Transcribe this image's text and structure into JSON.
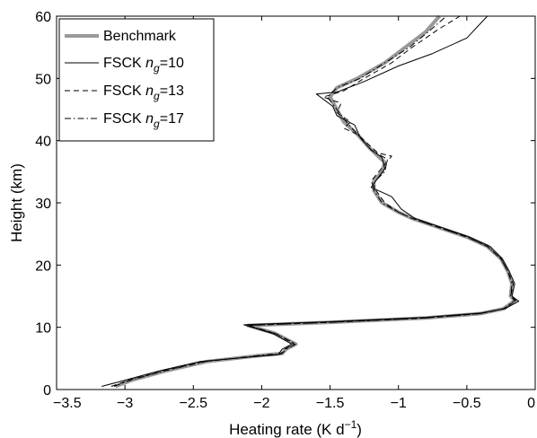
{
  "chart_data": {
    "type": "line",
    "title": "",
    "xlabel": "Heating rate (K d",
    "xlabel_superscript": "−1",
    "xlabel_suffix": ")",
    "ylabel": "Height (km)",
    "xlim": [
      -3.5,
      0
    ],
    "ylim": [
      0,
      60
    ],
    "xticks": [
      -3.5,
      -3,
      -2.5,
      -2,
      -1.5,
      -1,
      -0.5,
      0
    ],
    "xtick_labels": [
      "−3.5",
      "−3",
      "−2.5",
      "−2",
      "−1.5",
      "−1",
      "−0.5",
      "0"
    ],
    "yticks": [
      0,
      10,
      20,
      30,
      40,
      50,
      60
    ],
    "ytick_labels": [
      "0",
      "10",
      "20",
      "30",
      "40",
      "50",
      "60"
    ],
    "grid": false,
    "legend_position": "top-left",
    "series": [
      {
        "name": "Benchmark",
        "legend_prefix": "Benchmark",
        "legend_sub": "",
        "legend_suffix": "",
        "color": "#999999",
        "style": "thick",
        "points": [
          [
            -3.07,
            0.5
          ],
          [
            -2.95,
            1.5
          ],
          [
            -2.7,
            3
          ],
          [
            -2.4,
            4.5
          ],
          [
            -2.0,
            5.5
          ],
          [
            -1.85,
            5.8
          ],
          [
            -1.82,
            6.5
          ],
          [
            -1.75,
            7.3
          ],
          [
            -1.9,
            9
          ],
          [
            -2.1,
            10.3
          ],
          [
            -1.5,
            10.8
          ],
          [
            -0.8,
            11.5
          ],
          [
            -0.4,
            12.2
          ],
          [
            -0.23,
            13
          ],
          [
            -0.15,
            14.3
          ],
          [
            -0.18,
            15
          ],
          [
            -0.17,
            17
          ],
          [
            -0.2,
            19
          ],
          [
            -0.25,
            21
          ],
          [
            -0.35,
            23
          ],
          [
            -0.5,
            24.5
          ],
          [
            -0.7,
            26
          ],
          [
            -0.9,
            27.5
          ],
          [
            -1.0,
            28.5
          ],
          [
            -1.12,
            30
          ],
          [
            -1.18,
            32
          ],
          [
            -1.18,
            33.5
          ],
          [
            -1.12,
            35
          ],
          [
            -1.1,
            36.5
          ],
          [
            -1.15,
            37.5
          ],
          [
            -1.22,
            39
          ],
          [
            -1.3,
            41
          ],
          [
            -1.4,
            43
          ],
          [
            -1.45,
            45
          ],
          [
            -1.5,
            47
          ],
          [
            -1.45,
            48.5
          ],
          [
            -1.3,
            50
          ],
          [
            -1.1,
            52.5
          ],
          [
            -0.95,
            55
          ],
          [
            -0.8,
            57.5
          ],
          [
            -0.7,
            60
          ]
        ]
      },
      {
        "name": "FSCK n=10",
        "legend_prefix": "FSCK ",
        "legend_sub": "g",
        "legend_suffix": "=10",
        "color": "#000000",
        "style": "solid",
        "points": [
          [
            -3.17,
            0.5
          ],
          [
            -3.0,
            1.5
          ],
          [
            -2.75,
            3
          ],
          [
            -2.45,
            4.5
          ],
          [
            -2.05,
            5.3
          ],
          [
            -1.88,
            5.6
          ],
          [
            -1.85,
            6.5
          ],
          [
            -1.78,
            7.3
          ],
          [
            -1.92,
            9
          ],
          [
            -2.13,
            10.4
          ],
          [
            -1.5,
            10.9
          ],
          [
            -0.8,
            11.6
          ],
          [
            -0.4,
            12.3
          ],
          [
            -0.22,
            13
          ],
          [
            -0.12,
            14.2
          ],
          [
            -0.17,
            15
          ],
          [
            -0.15,
            17
          ],
          [
            -0.19,
            19
          ],
          [
            -0.24,
            21
          ],
          [
            -0.33,
            23
          ],
          [
            -0.48,
            24.5
          ],
          [
            -0.68,
            26
          ],
          [
            -0.88,
            27.5
          ],
          [
            -0.98,
            29
          ],
          [
            -1.05,
            31
          ],
          [
            -1.2,
            32.5
          ],
          [
            -1.15,
            34
          ],
          [
            -1.1,
            35.5
          ],
          [
            -1.12,
            37.3
          ],
          [
            -1.2,
            38.5
          ],
          [
            -1.28,
            40.5
          ],
          [
            -1.32,
            42.5
          ],
          [
            -1.45,
            44
          ],
          [
            -1.48,
            45.5
          ],
          [
            -1.6,
            47.5
          ],
          [
            -1.45,
            47.8
          ],
          [
            -1.25,
            49.5
          ],
          [
            -1.0,
            52
          ],
          [
            -0.75,
            54
          ],
          [
            -0.5,
            56.5
          ],
          [
            -0.35,
            60
          ]
        ]
      },
      {
        "name": "FSCK n=13",
        "legend_prefix": "FSCK ",
        "legend_sub": "g",
        "legend_suffix": "=13",
        "color": "#000000",
        "style": "dashed",
        "points": [
          [
            -3.1,
            0.5
          ],
          [
            -2.97,
            1.5
          ],
          [
            -2.72,
            3
          ],
          [
            -2.42,
            4.5
          ],
          [
            -2.02,
            5.4
          ],
          [
            -1.86,
            5.7
          ],
          [
            -1.83,
            6.5
          ],
          [
            -1.76,
            7.3
          ],
          [
            -1.9,
            9
          ],
          [
            -2.1,
            10.3
          ],
          [
            -1.5,
            10.8
          ],
          [
            -0.8,
            11.5
          ],
          [
            -0.4,
            12.2
          ],
          [
            -0.23,
            13
          ],
          [
            -0.14,
            14.3
          ],
          [
            -0.18,
            15
          ],
          [
            -0.16,
            17
          ],
          [
            -0.2,
            19
          ],
          [
            -0.25,
            21
          ],
          [
            -0.35,
            23
          ],
          [
            -0.5,
            24.5
          ],
          [
            -0.7,
            26
          ],
          [
            -0.9,
            27.5
          ],
          [
            -1.0,
            28.5
          ],
          [
            -1.1,
            30
          ],
          [
            -1.18,
            32.5
          ],
          [
            -1.2,
            33.5
          ],
          [
            -1.05,
            37.5
          ],
          [
            -1.15,
            38
          ],
          [
            -1.3,
            41
          ],
          [
            -1.4,
            42
          ],
          [
            -1.35,
            43
          ],
          [
            -1.45,
            44.5
          ],
          [
            -1.42,
            46
          ],
          [
            -1.55,
            47
          ],
          [
            -1.4,
            48
          ],
          [
            -1.25,
            50
          ],
          [
            -1.05,
            52.5
          ],
          [
            -0.9,
            55
          ],
          [
            -0.7,
            58
          ],
          [
            -0.55,
            60
          ]
        ]
      },
      {
        "name": "FSCK n=17",
        "legend_prefix": "FSCK ",
        "legend_sub": "g",
        "legend_suffix": "=17",
        "color": "#000000",
        "style": "dashdot",
        "points": [
          [
            -3.08,
            0.5
          ],
          [
            -2.96,
            1.5
          ],
          [
            -2.71,
            3
          ],
          [
            -2.41,
            4.5
          ],
          [
            -2.01,
            5.5
          ],
          [
            -1.85,
            5.8
          ],
          [
            -1.82,
            6.5
          ],
          [
            -1.75,
            7.3
          ],
          [
            -1.9,
            9
          ],
          [
            -2.1,
            10.3
          ],
          [
            -1.5,
            10.8
          ],
          [
            -0.8,
            11.5
          ],
          [
            -0.4,
            12.2
          ],
          [
            -0.23,
            13
          ],
          [
            -0.15,
            14.3
          ],
          [
            -0.18,
            15
          ],
          [
            -0.17,
            17
          ],
          [
            -0.2,
            19
          ],
          [
            -0.25,
            21
          ],
          [
            -0.35,
            23
          ],
          [
            -0.5,
            24.5
          ],
          [
            -0.7,
            26
          ],
          [
            -0.9,
            27.5
          ],
          [
            -1.0,
            28.5
          ],
          [
            -1.12,
            30
          ],
          [
            -1.18,
            32
          ],
          [
            -1.17,
            33.5
          ],
          [
            -1.1,
            35
          ],
          [
            -1.08,
            37
          ],
          [
            -1.2,
            38.5
          ],
          [
            -1.28,
            40.5
          ],
          [
            -1.38,
            43
          ],
          [
            -1.45,
            45
          ],
          [
            -1.52,
            47
          ],
          [
            -1.45,
            48.5
          ],
          [
            -1.28,
            50
          ],
          [
            -1.1,
            52.5
          ],
          [
            -0.92,
            55
          ],
          [
            -0.78,
            57.5
          ],
          [
            -0.65,
            60
          ]
        ]
      }
    ]
  }
}
